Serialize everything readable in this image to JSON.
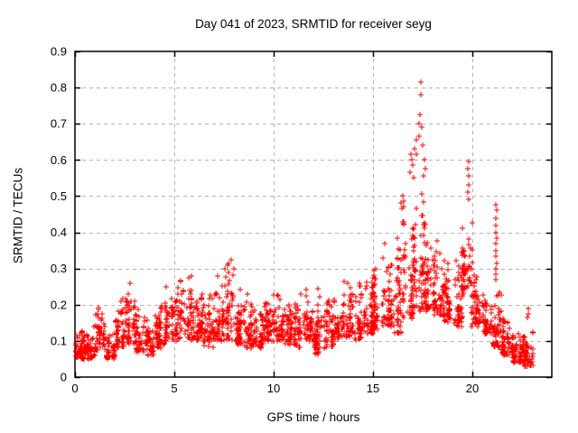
{
  "chart_data": {
    "type": "scatter",
    "title": "Day 041 of 2023, SRMTID for receiver seyg",
    "xlabel": "GPS time / hours",
    "ylabel": "SRMTID / TECUs",
    "xlim": [
      0,
      24
    ],
    "ylim": [
      0,
      0.9
    ],
    "xticks": [
      "0",
      "5",
      "10",
      "15",
      "20"
    ],
    "yticks": [
      "0",
      "0.1",
      "0.2",
      "0.3",
      "0.4",
      "0.5",
      "0.6",
      "0.7",
      "0.8",
      "0.9"
    ],
    "grid": {
      "shown": true,
      "style": "dashed",
      "color": "#b3b3b3"
    },
    "marker": {
      "shape": "plus",
      "color": "#ff0000",
      "size": 7
    },
    "frame_color": "#000000",
    "background_color": "#ffffff",
    "seed": 41,
    "bands_format": [
      "x_start_hours",
      "x_end_hours",
      "y_min_tecus",
      "y_max_tecus",
      "point_count"
    ],
    "bands": [
      [
        0.0,
        0.5,
        0.05,
        0.14,
        60
      ],
      [
        0.5,
        1.0,
        0.05,
        0.16,
        50
      ],
      [
        1.0,
        1.5,
        0.07,
        0.2,
        50
      ],
      [
        1.5,
        2.0,
        0.05,
        0.15,
        45
      ],
      [
        2.0,
        2.5,
        0.08,
        0.26,
        50
      ],
      [
        2.5,
        3.0,
        0.09,
        0.28,
        50
      ],
      [
        3.0,
        3.5,
        0.07,
        0.2,
        48
      ],
      [
        3.5,
        4.0,
        0.06,
        0.18,
        45
      ],
      [
        4.0,
        4.5,
        0.08,
        0.22,
        50
      ],
      [
        4.5,
        5.0,
        0.1,
        0.27,
        50
      ],
      [
        5.0,
        5.5,
        0.1,
        0.32,
        50
      ],
      [
        5.5,
        6.0,
        0.1,
        0.33,
        50
      ],
      [
        6.0,
        6.5,
        0.1,
        0.3,
        50
      ],
      [
        6.5,
        7.0,
        0.08,
        0.26,
        48
      ],
      [
        7.0,
        7.5,
        0.1,
        0.33,
        50
      ],
      [
        7.5,
        8.0,
        0.1,
        0.34,
        50
      ],
      [
        8.0,
        8.5,
        0.09,
        0.27,
        50
      ],
      [
        8.5,
        9.0,
        0.08,
        0.26,
        48
      ],
      [
        9.0,
        9.5,
        0.08,
        0.25,
        48
      ],
      [
        9.5,
        10.0,
        0.1,
        0.26,
        50
      ],
      [
        10.0,
        10.5,
        0.1,
        0.27,
        50
      ],
      [
        10.5,
        11.0,
        0.09,
        0.24,
        48
      ],
      [
        11.0,
        11.5,
        0.08,
        0.26,
        48
      ],
      [
        11.5,
        12.0,
        0.1,
        0.25,
        50
      ],
      [
        12.0,
        12.5,
        0.06,
        0.26,
        50
      ],
      [
        12.5,
        13.0,
        0.08,
        0.24,
        48
      ],
      [
        13.0,
        13.5,
        0.1,
        0.23,
        46
      ],
      [
        13.5,
        14.0,
        0.11,
        0.3,
        50
      ],
      [
        14.0,
        14.5,
        0.1,
        0.27,
        48
      ],
      [
        14.5,
        15.0,
        0.12,
        0.28,
        50
      ],
      [
        15.0,
        15.5,
        0.13,
        0.32,
        52
      ],
      [
        15.5,
        16.0,
        0.14,
        0.38,
        52
      ],
      [
        16.0,
        16.5,
        0.12,
        0.44,
        52
      ],
      [
        16.5,
        17.0,
        0.16,
        0.52,
        55
      ],
      [
        17.0,
        17.5,
        0.18,
        0.62,
        55
      ],
      [
        17.5,
        18.0,
        0.18,
        0.52,
        52
      ],
      [
        18.0,
        18.5,
        0.17,
        0.47,
        52
      ],
      [
        18.5,
        19.0,
        0.15,
        0.43,
        50
      ],
      [
        19.0,
        19.5,
        0.14,
        0.38,
        50
      ],
      [
        19.5,
        20.0,
        0.22,
        0.47,
        50
      ],
      [
        20.0,
        20.5,
        0.14,
        0.3,
        50
      ],
      [
        20.5,
        21.0,
        0.12,
        0.26,
        50
      ],
      [
        21.0,
        21.5,
        0.08,
        0.24,
        50
      ],
      [
        21.5,
        22.0,
        0.06,
        0.18,
        55
      ],
      [
        22.0,
        22.5,
        0.04,
        0.14,
        55
      ],
      [
        22.5,
        23.1,
        0.03,
        0.13,
        65
      ]
    ],
    "outliers": [
      [
        17.4,
        0.815
      ],
      [
        17.4,
        0.78
      ],
      [
        17.35,
        0.725
      ],
      [
        17.3,
        0.7
      ],
      [
        17.45,
        0.69
      ],
      [
        17.3,
        0.665
      ],
      [
        17.2,
        0.655
      ],
      [
        17.5,
        0.64
      ],
      [
        17.1,
        0.63
      ],
      [
        16.9,
        0.615
      ],
      [
        16.95,
        0.6
      ],
      [
        17.0,
        0.585
      ],
      [
        16.85,
        0.565
      ],
      [
        17.05,
        0.55
      ],
      [
        17.6,
        0.6
      ],
      [
        17.65,
        0.575
      ],
      [
        17.55,
        0.555
      ],
      [
        16.4,
        0.48
      ],
      [
        16.5,
        0.5
      ],
      [
        16.55,
        0.485
      ],
      [
        16.45,
        0.465
      ],
      [
        19.8,
        0.595
      ],
      [
        19.78,
        0.575
      ],
      [
        19.82,
        0.555
      ],
      [
        19.8,
        0.53
      ],
      [
        19.76,
        0.51
      ],
      [
        19.84,
        0.49
      ],
      [
        21.2,
        0.475
      ],
      [
        21.22,
        0.46
      ],
      [
        21.18,
        0.44
      ],
      [
        21.2,
        0.42
      ],
      [
        21.2,
        0.4
      ],
      [
        21.22,
        0.385
      ],
      [
        21.18,
        0.37
      ],
      [
        21.2,
        0.35
      ],
      [
        21.2,
        0.335
      ],
      [
        21.22,
        0.315
      ],
      [
        21.18,
        0.3
      ],
      [
        21.2,
        0.285
      ],
      [
        21.2,
        0.27
      ],
      [
        22.8,
        0.19
      ],
      [
        22.82,
        0.175
      ],
      [
        22.78,
        0.165
      ]
    ]
  }
}
